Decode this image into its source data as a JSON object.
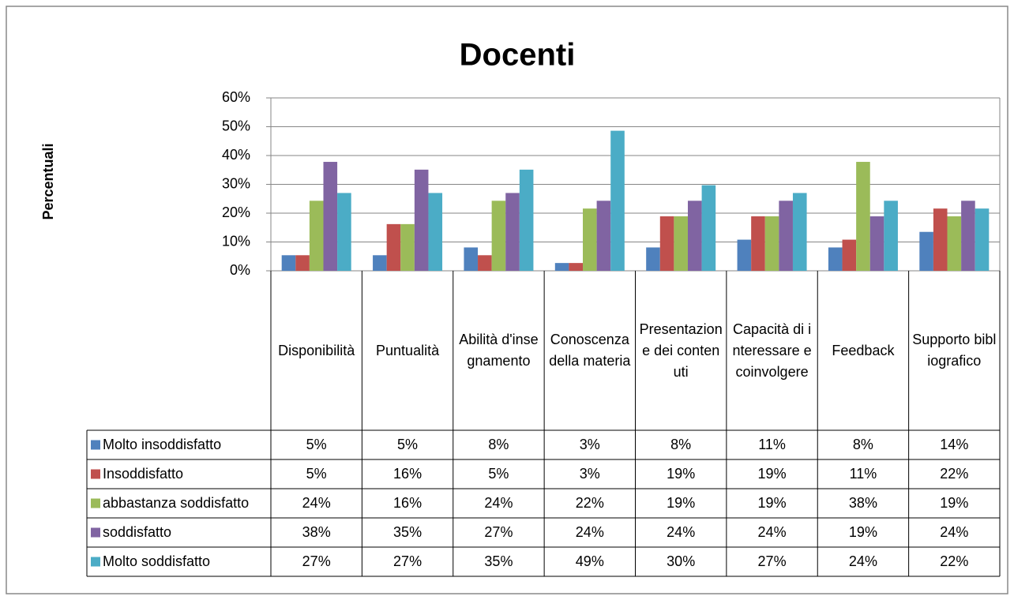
{
  "chart_data": {
    "type": "bar",
    "title": "Docenti",
    "y_label": "Percentuali",
    "categories": [
      "Disponibilità",
      "Puntualità",
      "Abilità d'insegnamento",
      "Conoscenza della materia",
      "Presentazione dei contenuti",
      "Capacità di interessare e coinvolgere",
      "Feedback",
      "Supporto bibliografico"
    ],
    "series": [
      {
        "name": "Molto insoddisfatto",
        "color": "#4f81bd",
        "values": [
          5.4,
          5.4,
          8.1,
          2.7,
          8.1,
          10.8,
          8.1,
          13.5
        ],
        "value_labels": [
          "5%",
          "5%",
          "8%",
          "3%",
          "8%",
          "11%",
          "8%",
          "14%"
        ]
      },
      {
        "name": "Insoddisfatto",
        "color": "#c0504d",
        "values": [
          5.4,
          16.2,
          5.4,
          2.7,
          18.9,
          18.9,
          10.8,
          21.6
        ],
        "value_labels": [
          "5%",
          "16%",
          "5%",
          "3%",
          "19%",
          "19%",
          "11%",
          "22%"
        ]
      },
      {
        "name": "abbastanza soddisfatto",
        "color": "#9bbb59",
        "values": [
          24.3,
          16.2,
          24.3,
          21.6,
          18.9,
          18.9,
          37.8,
          18.9
        ],
        "value_labels": [
          "24%",
          "16%",
          "24%",
          "22%",
          "19%",
          "19%",
          "38%",
          "19%"
        ]
      },
      {
        "name": "soddisfatto",
        "color": "#8064a2",
        "values": [
          37.8,
          35.1,
          27.0,
          24.3,
          24.3,
          24.3,
          18.9,
          24.3
        ],
        "value_labels": [
          "38%",
          "35%",
          "27%",
          "24%",
          "24%",
          "24%",
          "19%",
          "24%"
        ]
      },
      {
        "name": "Molto soddisfatto",
        "color": "#4bacc6",
        "values": [
          27.0,
          27.0,
          35.1,
          48.6,
          29.7,
          27.0,
          24.3,
          21.6
        ],
        "value_labels": [
          "27%",
          "27%",
          "35%",
          "49%",
          "30%",
          "27%",
          "24%",
          "22%"
        ]
      }
    ],
    "ylim": [
      0,
      60
    ],
    "yticks": [
      {
        "value": 0,
        "label": "0%"
      },
      {
        "value": 10,
        "label": "10%"
      },
      {
        "value": 20,
        "label": "20%"
      },
      {
        "value": 30,
        "label": "30%"
      },
      {
        "value": 40,
        "label": "40%"
      },
      {
        "value": 50,
        "label": "50%"
      },
      {
        "value": 60,
        "label": "60%"
      }
    ],
    "grid": true,
    "legend": "table"
  }
}
